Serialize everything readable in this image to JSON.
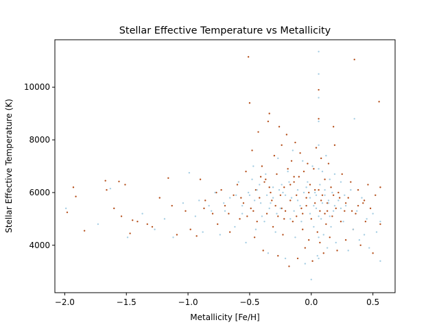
{
  "chart_data": {
    "type": "scatter",
    "title": "Stellar Effective Temperature vs Metallicity",
    "xlabel": "Metallicity [Fe/H]",
    "ylabel": "Stellar Effective Temperature (K)",
    "xlim": [
      -2.08,
      0.68
    ],
    "ylim": [
      2200,
      11800
    ],
    "xticks": [
      -2.0,
      -1.5,
      -1.0,
      -0.5,
      0.0,
      0.5
    ],
    "xtick_labels": [
      "−2.0",
      "−1.5",
      "−1.0",
      "−0.5",
      "0.0",
      "0.5"
    ],
    "yticks": [
      4000,
      6000,
      8000,
      10000
    ],
    "ytick_labels": [
      "4000",
      "6000",
      "8000",
      "10000"
    ],
    "grid": false,
    "legend": "none",
    "series": [
      {
        "color": "#b5501c",
        "points": [
          [
            -1.98,
            5250
          ],
          [
            -1.93,
            6200
          ],
          [
            -1.91,
            5850
          ],
          [
            -1.84,
            4550
          ],
          [
            -1.67,
            6450
          ],
          [
            -1.66,
            6100
          ],
          [
            -1.6,
            5400
          ],
          [
            -1.56,
            6420
          ],
          [
            -1.54,
            5100
          ],
          [
            -1.51,
            6300
          ],
          [
            -1.47,
            4450
          ],
          [
            -1.45,
            4950
          ],
          [
            -1.41,
            4900
          ],
          [
            -1.33,
            4800
          ],
          [
            -1.29,
            4700
          ],
          [
            -1.23,
            5800
          ],
          [
            -1.16,
            6550
          ],
          [
            -1.13,
            5500
          ],
          [
            -1.09,
            4400
          ],
          [
            -1.02,
            5300
          ],
          [
            -0.98,
            4600
          ],
          [
            -0.93,
            4350
          ],
          [
            -0.9,
            6500
          ],
          [
            -0.86,
            5700
          ],
          [
            -0.8,
            5200
          ],
          [
            -0.76,
            4800
          ],
          [
            -0.73,
            6100
          ],
          [
            -0.7,
            5500
          ],
          [
            -0.66,
            4500
          ],
          [
            -0.63,
            5900
          ],
          [
            -0.6,
            6300
          ],
          [
            -0.58,
            5000
          ],
          [
            -0.55,
            5600
          ],
          [
            -0.53,
            6800
          ],
          [
            -0.51,
            11150
          ],
          [
            -0.5,
            9400
          ],
          [
            -0.49,
            5400
          ],
          [
            -0.48,
            7600
          ],
          [
            -0.46,
            4300
          ],
          [
            -0.45,
            6100
          ],
          [
            -0.43,
            8300
          ],
          [
            -0.42,
            5800
          ],
          [
            -0.4,
            7000
          ],
          [
            -0.39,
            3800
          ],
          [
            -0.38,
            6400
          ],
          [
            -0.36,
            5200
          ],
          [
            -0.35,
            8700
          ],
          [
            -0.34,
            9000
          ],
          [
            -0.33,
            6000
          ],
          [
            -0.31,
            4700
          ],
          [
            -0.3,
            7400
          ],
          [
            -0.29,
            5500
          ],
          [
            -0.28,
            6700
          ],
          [
            -0.27,
            3600
          ],
          [
            -0.26,
            8500
          ],
          [
            -0.25,
            5900
          ],
          [
            -0.24,
            7800
          ],
          [
            -0.23,
            4400
          ],
          [
            -0.22,
            6200
          ],
          [
            -0.21,
            5300
          ],
          [
            -0.2,
            8200
          ],
          [
            -0.19,
            6900
          ],
          [
            -0.18,
            3200
          ],
          [
            -0.17,
            5700
          ],
          [
            -0.16,
            7200
          ],
          [
            -0.15,
            4900
          ],
          [
            -0.14,
            6400
          ],
          [
            -0.13,
            7900
          ],
          [
            -0.12,
            5100
          ],
          [
            -0.11,
            3500
          ],
          [
            -0.1,
            6600
          ],
          [
            -0.09,
            7500
          ],
          [
            -0.08,
            5400
          ],
          [
            -0.07,
            4600
          ],
          [
            -0.06,
            6800
          ],
          [
            -0.05,
            3900
          ],
          [
            -0.04,
            5800
          ],
          [
            -0.03,
            7100
          ],
          [
            -0.02,
            4200
          ],
          [
            -0.01,
            6300
          ],
          [
            0.0,
            5000
          ],
          [
            0.01,
            3400
          ],
          [
            0.02,
            6900
          ],
          [
            0.03,
            5600
          ],
          [
            0.04,
            7700
          ],
          [
            0.05,
            4500
          ],
          [
            0.06,
            8800
          ],
          [
            0.06,
            6100
          ],
          [
            0.06,
            9900
          ],
          [
            0.07,
            5300
          ],
          [
            0.07,
            4100
          ],
          [
            0.08,
            7300
          ],
          [
            0.09,
            5900
          ],
          [
            0.1,
            3700
          ],
          [
            0.11,
            6500
          ],
          [
            0.12,
            4800
          ],
          [
            0.13,
            5600
          ],
          [
            0.14,
            7100
          ],
          [
            0.15,
            4300
          ],
          [
            0.16,
            6200
          ],
          [
            0.17,
            5100
          ],
          [
            0.18,
            8500
          ],
          [
            0.19,
            7800
          ],
          [
            0.2,
            5400
          ],
          [
            0.21,
            3800
          ],
          [
            0.22,
            6000
          ],
          [
            0.24,
            4900
          ],
          [
            0.25,
            6700
          ],
          [
            0.27,
            5300
          ],
          [
            0.28,
            4200
          ],
          [
            0.3,
            5800
          ],
          [
            0.32,
            6400
          ],
          [
            0.34,
            4600
          ],
          [
            0.35,
            11050
          ],
          [
            0.36,
            5200
          ],
          [
            0.38,
            6100
          ],
          [
            0.4,
            4000
          ],
          [
            0.42,
            5600
          ],
          [
            0.44,
            4900
          ],
          [
            0.46,
            6300
          ],
          [
            0.48,
            5400
          ],
          [
            0.5,
            3700
          ],
          [
            0.52,
            5900
          ],
          [
            0.55,
            9450
          ],
          [
            0.56,
            6200
          ],
          [
            0.56,
            4800
          ],
          [
            -0.47,
            5300
          ],
          [
            -0.37,
            6500
          ],
          [
            -0.27,
            5100
          ],
          [
            -0.17,
            6300
          ],
          [
            -0.07,
            5200
          ],
          [
            0.03,
            6100
          ],
          [
            0.13,
            5300
          ],
          [
            -0.57,
            5800
          ],
          [
            -0.67,
            5200
          ],
          [
            -0.77,
            6000
          ],
          [
            -0.87,
            5400
          ],
          [
            -0.44,
            4900
          ],
          [
            -0.34,
            6200
          ],
          [
            -0.24,
            5400
          ],
          [
            -0.14,
            6600
          ],
          [
            -0.04,
            5500
          ],
          [
            0.08,
            5700
          ],
          [
            0.18,
            5900
          ],
          [
            0.28,
            5600
          ],
          [
            0.38,
            5500
          ],
          [
            -0.52,
            5100
          ],
          [
            -0.41,
            6600
          ],
          [
            -0.32,
            5700
          ],
          [
            -0.22,
            5000
          ],
          [
            -0.12,
            5900
          ],
          [
            -0.02,
            6000
          ],
          [
            0.11,
            5200
          ],
          [
            0.23,
            5800
          ],
          [
            0.33,
            5300
          ],
          [
            0.43,
            5700
          ]
        ]
      },
      {
        "color": "#a6cee3",
        "points": [
          [
            -1.99,
            5400
          ],
          [
            -1.73,
            4800
          ],
          [
            -1.63,
            6150
          ],
          [
            -1.49,
            4300
          ],
          [
            -1.37,
            5200
          ],
          [
            -1.27,
            4600
          ],
          [
            -1.19,
            5000
          ],
          [
            -1.12,
            4300
          ],
          [
            -1.04,
            5600
          ],
          [
            -0.99,
            6750
          ],
          [
            -0.94,
            5100
          ],
          [
            -0.88,
            4500
          ],
          [
            -0.83,
            5500
          ],
          [
            -0.78,
            6000
          ],
          [
            -0.74,
            4400
          ],
          [
            -0.7,
            5300
          ],
          [
            -0.66,
            5800
          ],
          [
            -0.62,
            4700
          ],
          [
            -0.59,
            6400
          ],
          [
            -0.56,
            5200
          ],
          [
            -0.53,
            4100
          ],
          [
            -0.5,
            5900
          ],
          [
            -0.47,
            7000
          ],
          [
            -0.45,
            4600
          ],
          [
            -0.42,
            6300
          ],
          [
            -0.4,
            5100
          ],
          [
            -0.37,
            6700
          ],
          [
            -0.35,
            3700
          ],
          [
            -0.33,
            5600
          ],
          [
            -0.31,
            6200
          ],
          [
            -0.29,
            4500
          ],
          [
            -0.27,
            7300
          ],
          [
            -0.25,
            5400
          ],
          [
            -0.23,
            6000
          ],
          [
            -0.21,
            3500
          ],
          [
            -0.19,
            6800
          ],
          [
            -0.17,
            5000
          ],
          [
            -0.15,
            7600
          ],
          [
            -0.13,
            4300
          ],
          [
            -0.11,
            6100
          ],
          [
            -0.09,
            5500
          ],
          [
            -0.07,
            7200
          ],
          [
            -0.05,
            3300
          ],
          [
            -0.03,
            6400
          ],
          [
            -0.01,
            5200
          ],
          [
            0.0,
            2700
          ],
          [
            0.01,
            7000
          ],
          [
            0.02,
            4700
          ],
          [
            0.03,
            6000
          ],
          [
            0.04,
            5400
          ],
          [
            0.05,
            3600
          ],
          [
            0.06,
            11350
          ],
          [
            0.06,
            10500
          ],
          [
            0.06,
            9600
          ],
          [
            0.06,
            8700
          ],
          [
            0.06,
            7800
          ],
          [
            0.06,
            6900
          ],
          [
            0.06,
            5100
          ],
          [
            0.06,
            4300
          ],
          [
            0.06,
            3500
          ],
          [
            0.07,
            6300
          ],
          [
            0.08,
            5000
          ],
          [
            0.09,
            6800
          ],
          [
            0.1,
            4400
          ],
          [
            0.11,
            5900
          ],
          [
            0.12,
            7400
          ],
          [
            0.13,
            3900
          ],
          [
            0.14,
            5600
          ],
          [
            0.15,
            6500
          ],
          [
            0.16,
            4700
          ],
          [
            0.17,
            6000
          ],
          [
            0.18,
            5300
          ],
          [
            0.19,
            6700
          ],
          [
            0.2,
            4100
          ],
          [
            0.22,
            5700
          ],
          [
            0.24,
            6400
          ],
          [
            0.26,
            4900
          ],
          [
            0.28,
            5500
          ],
          [
            0.3,
            3800
          ],
          [
            0.32,
            6100
          ],
          [
            0.34,
            4600
          ],
          [
            0.35,
            8800
          ],
          [
            0.37,
            5300
          ],
          [
            0.39,
            4200
          ],
          [
            0.41,
            5800
          ],
          [
            0.43,
            4400
          ],
          [
            0.45,
            5000
          ],
          [
            0.47,
            3900
          ],
          [
            0.5,
            5200
          ],
          [
            0.53,
            4500
          ],
          [
            0.56,
            4900
          ],
          [
            0.56,
            3400
          ],
          [
            -0.46,
            5700
          ],
          [
            -0.36,
            5900
          ],
          [
            -0.26,
            6100
          ],
          [
            -0.16,
            5800
          ],
          [
            -0.06,
            6000
          ],
          [
            0.04,
            5900
          ],
          [
            0.14,
            5700
          ],
          [
            -0.51,
            6000
          ],
          [
            -0.41,
            5600
          ],
          [
            -0.31,
            5800
          ],
          [
            -0.21,
            5900
          ],
          [
            -0.11,
            5700
          ],
          [
            -0.01,
            5800
          ],
          [
            0.09,
            5600
          ],
          [
            0.19,
            5500
          ],
          [
            -0.56,
            5500
          ],
          [
            -0.44,
            6100
          ],
          [
            -0.34,
            5400
          ],
          [
            -0.24,
            6300
          ],
          [
            -0.14,
            5300
          ],
          [
            -0.04,
            6200
          ],
          [
            0.11,
            6100
          ],
          [
            0.24,
            5400
          ],
          [
            -0.61,
            5900
          ],
          [
            -0.71,
            5600
          ],
          [
            -0.81,
            5300
          ],
          [
            -0.91,
            5700
          ],
          [
            -0.48,
            6500
          ],
          [
            -0.38,
            4900
          ],
          [
            -0.28,
            5200
          ],
          [
            -0.18,
            6400
          ],
          [
            -0.08,
            4900
          ],
          [
            0.02,
            5500
          ],
          [
            0.15,
            5100
          ],
          [
            0.27,
            5900
          ]
        ]
      }
    ]
  }
}
